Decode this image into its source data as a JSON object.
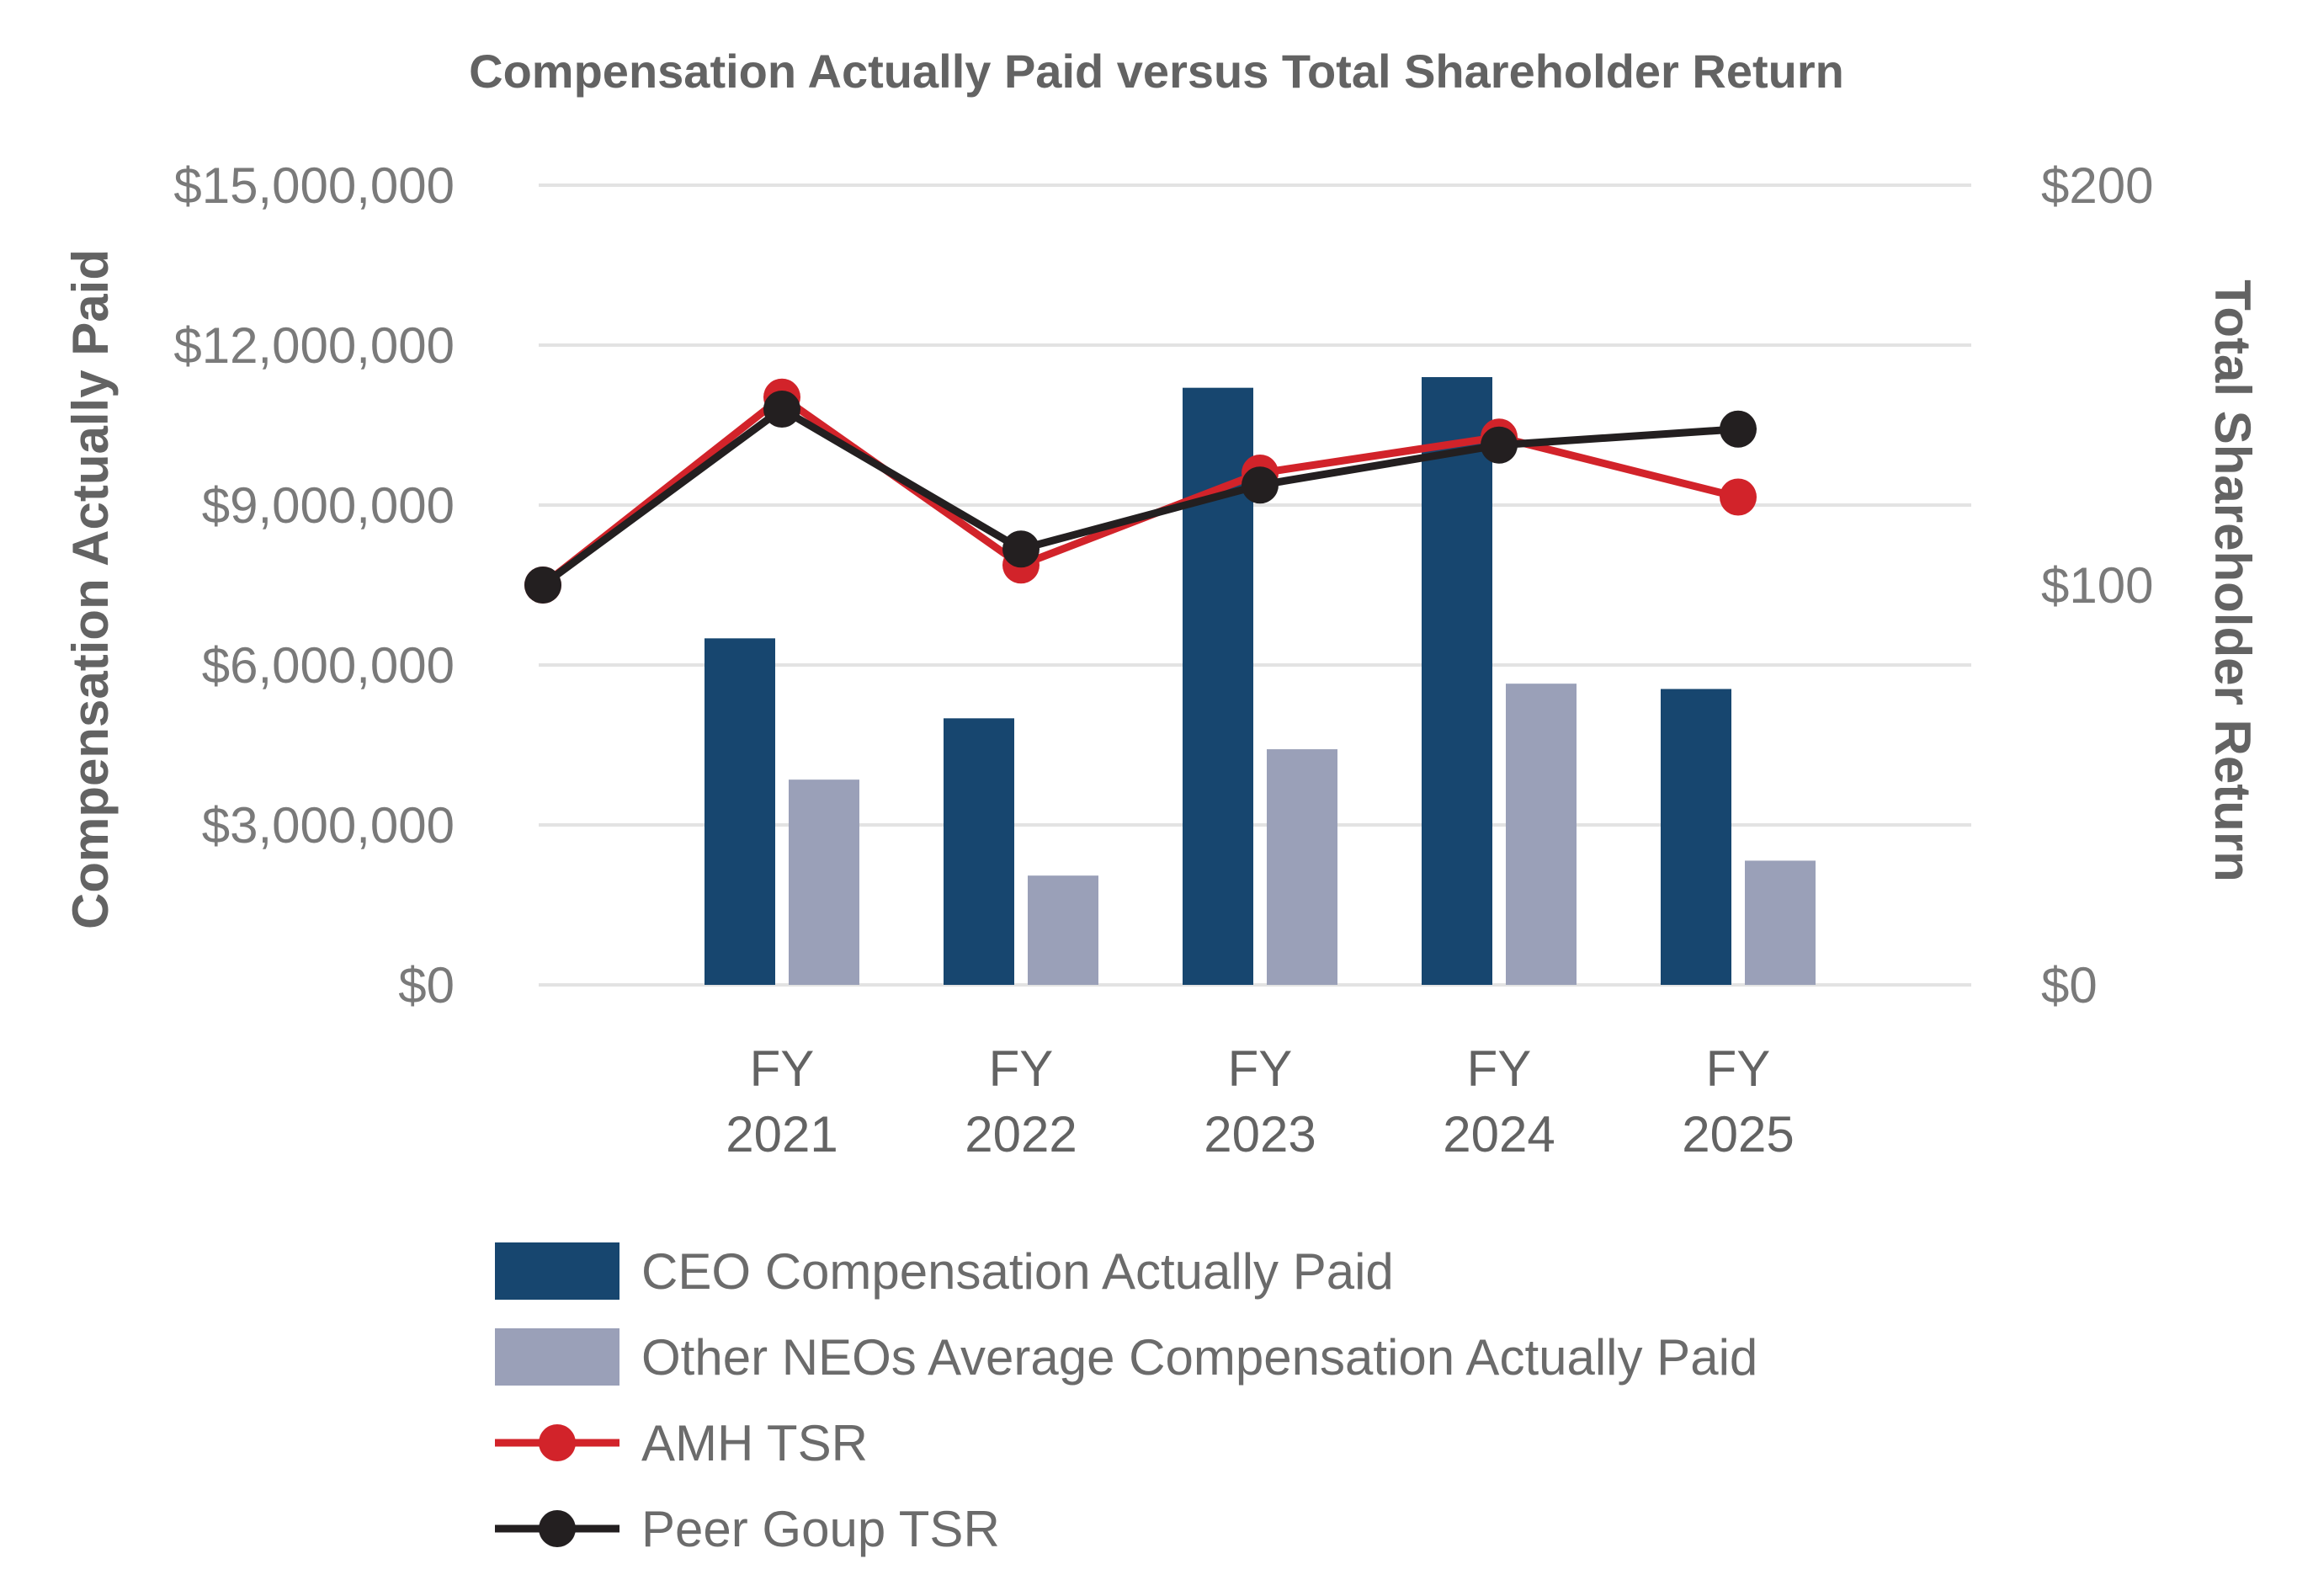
{
  "chart_data": {
    "type": "bar",
    "title": "Compensation Actually Paid versus Total Shareholder Return",
    "xlabel": "",
    "ylabel": "Compensation Actually Paid",
    "y2label": "Total Shareholder Return",
    "ylim": [
      0,
      15000000
    ],
    "y2lim": [
      0,
      200
    ],
    "grid": true,
    "legend_position": "bottom-left",
    "start_label": "",
    "categories": [
      {
        "line1": "FY",
        "line2": "2021"
      },
      {
        "line1": "FY",
        "line2": "2022"
      },
      {
        "line1": "FY",
        "line2": "2023"
      },
      {
        "line1": "FY",
        "line2": "2024"
      },
      {
        "line1": "FY",
        "line2": "2025"
      }
    ],
    "yticks": [
      {
        "value": 0,
        "label": "$0"
      },
      {
        "value": 3000000,
        "label": "$3,000,000"
      },
      {
        "value": 6000000,
        "label": "$6,000,000"
      },
      {
        "value": 9000000,
        "label": "$9,000,000"
      },
      {
        "value": 12000000,
        "label": "$12,000,000"
      },
      {
        "value": 15000000,
        "label": "$15,000,000"
      }
    ],
    "y2ticks": [
      {
        "value": 0,
        "label": "$0"
      },
      {
        "value": 100,
        "label": "$100"
      },
      {
        "value": 200,
        "label": "$200"
      }
    ],
    "bar_series": [
      {
        "name": "CEO Compensation Actually Paid",
        "color": "#17466f",
        "values": [
          6500000,
          5000000,
          11200000,
          11400000,
          5550000
        ]
      },
      {
        "name": "Other NEOs Average Compensation Actually Paid",
        "color": "#9aa0b8",
        "values": [
          3850000,
          2050000,
          4420000,
          5650000,
          2330000
        ]
      }
    ],
    "line_series": [
      {
        "name": "AMH TSR",
        "color": "#d2232a",
        "values": [
          100,
          147,
          105,
          128,
          137,
          122
        ]
      },
      {
        "name": "Peer Goup TSR",
        "color": "#231f20",
        "values": [
          100,
          144,
          109,
          125,
          135,
          139
        ]
      }
    ]
  }
}
